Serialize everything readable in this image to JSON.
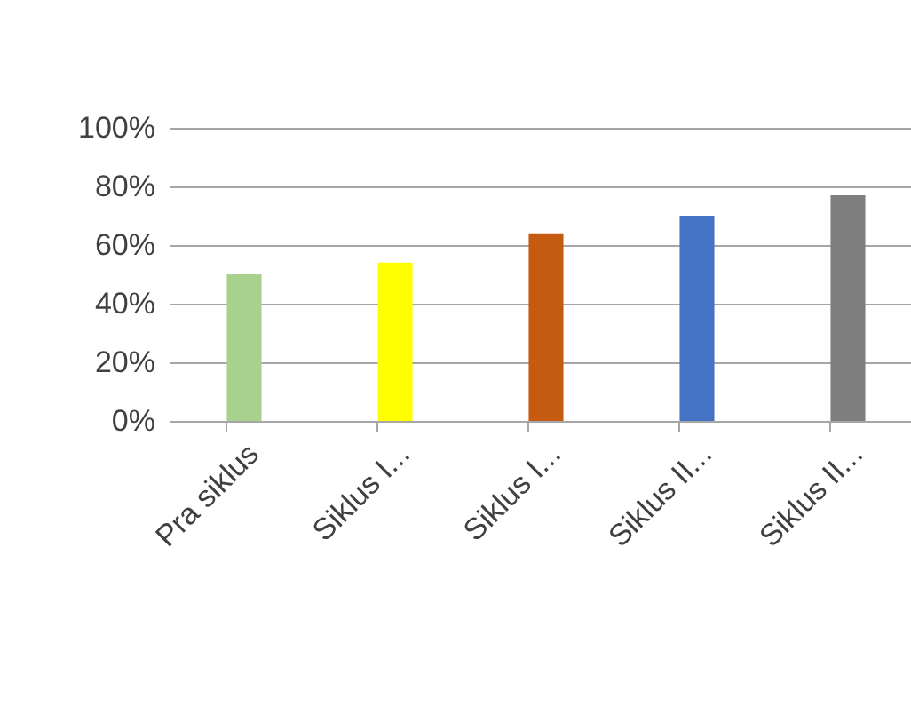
{
  "chart_data": {
    "type": "bar",
    "categories": [
      "Pra siklus",
      "Siklus I...",
      "Siklus I...",
      "Siklus II...",
      "Siklus II..."
    ],
    "values": [
      50,
      54,
      64,
      70,
      77
    ],
    "colors": [
      "#a9d18e",
      "#ffff00",
      "#c55a11",
      "#4472c4",
      "#7f7f7f"
    ],
    "ylim": [
      0,
      100
    ],
    "yticks": [
      {
        "value": 0,
        "label": "0%"
      },
      {
        "value": 20,
        "label": "20%"
      },
      {
        "value": 40,
        "label": "40%"
      },
      {
        "value": 60,
        "label": "60%"
      },
      {
        "value": 80,
        "label": "80%"
      },
      {
        "value": 100,
        "label": "100%"
      }
    ],
    "grid": "y"
  }
}
